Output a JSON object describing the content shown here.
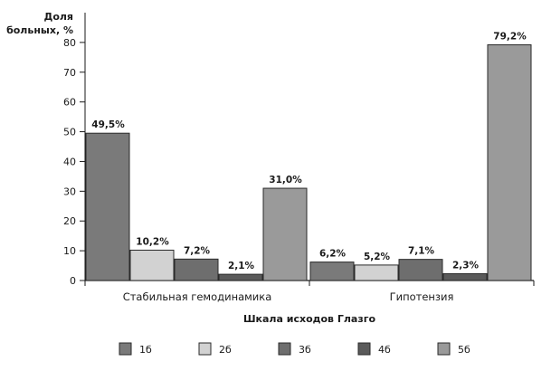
{
  "chart_data": {
    "type": "bar",
    "ylabel": [
      "Доля",
      "больных, %"
    ],
    "xlabel": "Шкала исходов Глазго",
    "categories": [
      "Стабильная гемодинамика",
      "Гипотензия"
    ],
    "ylim": [
      0,
      90
    ],
    "yticks": [
      0,
      10,
      20,
      30,
      40,
      50,
      60,
      70,
      80
    ],
    "grid": false,
    "legend_position": "bottom",
    "series": [
      {
        "name": "1б",
        "color": "#7a7a7a",
        "values": [
          49.5,
          6.2
        ],
        "labels": [
          "49,5%",
          "6,2%"
        ]
      },
      {
        "name": "2б",
        "color": "#d2d2d2",
        "values": [
          10.2,
          5.2
        ],
        "labels": [
          "10,2%",
          "5,2%"
        ]
      },
      {
        "name": "3б",
        "color": "#6e6e6e",
        "values": [
          7.2,
          7.1
        ],
        "labels": [
          "7,2%",
          "7,1%"
        ]
      },
      {
        "name": "4б",
        "color": "#5a5a5a",
        "values": [
          2.1,
          2.3
        ],
        "labels": [
          "2,1%",
          "2,3%"
        ]
      },
      {
        "name": "5б",
        "color": "#9a9a9a",
        "values": [
          31.0,
          79.2
        ],
        "labels": [
          "31,0%",
          "79,2%"
        ]
      }
    ]
  }
}
